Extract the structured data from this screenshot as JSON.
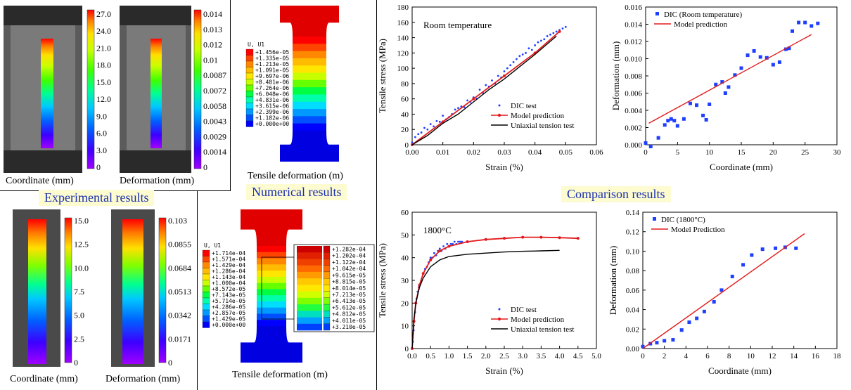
{
  "sections": {
    "experimental": "Experimental results",
    "numerical": "Numerical results",
    "comparison": "Comparison results"
  },
  "colormap": [
    "#a000ff",
    "#3c00ff",
    "#0060ff",
    "#00c8ff",
    "#00ff90",
    "#40ff00",
    "#c8ff00",
    "#ffe000",
    "#ff8000",
    "#ff0000"
  ],
  "exp_top": {
    "coord_ticks": [
      "27.0",
      "24.0",
      "21.0",
      "18.0",
      "15.0",
      "12.0",
      "9.0",
      "6.0",
      "3.0",
      "0"
    ],
    "def_ticks": [
      "0.014",
      "0.013",
      "0.012",
      "0.01",
      "0.0087",
      "0.0072",
      "0.0058",
      "0.0043",
      "0.0029",
      "0.0014",
      "0"
    ],
    "coord_caption": "Coordinate (mm)",
    "def_caption": "Deformation  (mm)"
  },
  "exp_bottom": {
    "coord_ticks": [
      "15.0",
      "12.5",
      "10.0",
      "7.5",
      "5.0",
      "2.5",
      "0"
    ],
    "def_ticks": [
      "0.103",
      "0.0855",
      "0.0684",
      "0.0513",
      "0.0342",
      "0.0171",
      "0"
    ],
    "coord_caption": "Coordinate (mm)",
    "def_caption": "Deformation (mm)"
  },
  "fea_top": {
    "title": "U, U1",
    "legend": [
      "+1.456e-05",
      "+1.335e-05",
      "+1.213e-05",
      "+1.091e-05",
      "+9.697e-06",
      "+8.481e-06",
      "+7.264e-06",
      "+6.048e-06",
      "+4.831e-06",
      "+3.615e-06",
      "+2.399e-06",
      "+1.182e-06",
      "+0.000e+00"
    ],
    "caption": "Tensile deformation (m)"
  },
  "fea_bottom": {
    "title": "U, U1",
    "legend": [
      "+1.714e-04",
      "+1.571e-04",
      "+1.429e-04",
      "+1.286e-04",
      "+1.143e-04",
      "+1.000e-04",
      "+8.572e-05",
      "+7.143e-05",
      "+5.714e-05",
      "+4.286e-05",
      "+2.857e-05",
      "+1.429e-05",
      "+0.000e+00"
    ],
    "zoom_legend": [
      "+1.282e-04",
      "+1.202e-04",
      "+1.122e-04",
      "+1.042e-04",
      "+9.615e-05",
      "+8.815e-05",
      "+8.014e-05",
      "+7.213e-05",
      "+6.413e-05",
      "+5.612e-05",
      "+4.812e-05",
      "+4.011e-05",
      "+3.210e-05"
    ],
    "caption": "Tensile deformation (m)"
  },
  "chart_data": [
    {
      "type": "scatter",
      "annotation": "Room temperature",
      "xlabel": "Strain (%)",
      "ylabel": "Tensile stress (MPa)",
      "xlim": [
        0,
        0.06
      ],
      "ylim": [
        0,
        180
      ],
      "xticks": [
        "0.00",
        "0.01",
        "0.02",
        "0.03",
        "0.04",
        "0.05",
        "0.06"
      ],
      "yticks": [
        "0",
        "20",
        "40",
        "60",
        "80",
        "100",
        "120",
        "140",
        "160",
        "180"
      ],
      "legend": "bottom-right",
      "series": [
        {
          "name": "DIC test",
          "style": "dots",
          "color": "#1f3fff",
          "x": [
            0.0,
            0.001,
            0.002,
            0.003,
            0.004,
            0.005,
            0.006,
            0.007,
            0.008,
            0.009,
            0.01,
            0.011,
            0.012,
            0.013,
            0.014,
            0.015,
            0.016,
            0.017,
            0.018,
            0.019,
            0.02,
            0.021,
            0.022,
            0.023,
            0.024,
            0.025,
            0.026,
            0.027,
            0.028,
            0.029,
            0.03,
            0.031,
            0.032,
            0.033,
            0.034,
            0.035,
            0.036,
            0.037,
            0.038,
            0.039,
            0.04,
            0.041,
            0.042,
            0.043,
            0.044,
            0.045,
            0.046,
            0.047,
            0.048,
            0.049,
            0.05
          ],
          "y": [
            3,
            10,
            14,
            16,
            22,
            20,
            27,
            24,
            31,
            30,
            38,
            33,
            36,
            40,
            46,
            48,
            50,
            49,
            58,
            56,
            62,
            60,
            72,
            68,
            78,
            76,
            84,
            80,
            90,
            88,
            96,
            100,
            104,
            108,
            112,
            116,
            118,
            120,
            126,
            124,
            130,
            134,
            136,
            138,
            142,
            144,
            146,
            148,
            150,
            152,
            154
          ]
        },
        {
          "name": "Model prediction",
          "style": "line-marker",
          "color": "#e31a1c",
          "x": [
            0,
            0.01,
            0.02,
            0.03,
            0.04,
            0.048
          ],
          "y": [
            0,
            30,
            60,
            90,
            120,
            148
          ]
        },
        {
          "name": "Uniaxial tension test",
          "style": "line",
          "color": "#000000",
          "x": [
            0,
            0.005,
            0.01,
            0.015,
            0.02,
            0.025,
            0.03,
            0.035,
            0.04,
            0.047
          ],
          "y": [
            0,
            12,
            28,
            40,
            56,
            72,
            86,
            102,
            118,
            142
          ]
        }
      ]
    },
    {
      "type": "scatter",
      "xlabel": "Coordinate (mm)",
      "ylabel": "Deformation (mm)",
      "xlim": [
        0,
        30
      ],
      "ylim": [
        0,
        0.016
      ],
      "xticks": [
        "0",
        "5",
        "10",
        "15",
        "20",
        "25",
        "30"
      ],
      "yticks": [
        "0.000",
        "0.002",
        "0.004",
        "0.006",
        "0.008",
        "0.010",
        "0.012",
        "0.014",
        "0.016"
      ],
      "legend": "top-left",
      "series": [
        {
          "name": "DIC (Room temperature)",
          "style": "squares",
          "color": "#1f3fff",
          "x": [
            0,
            0.8,
            2,
            3,
            3.5,
            4,
            4.5,
            5,
            6,
            7,
            8,
            9,
            9.5,
            10,
            11,
            12,
            12.5,
            13,
            14,
            15,
            16,
            17,
            18,
            19,
            20,
            21,
            22,
            22.5,
            23,
            24,
            25,
            26,
            27
          ],
          "y": [
            0.0002,
            -0.0002,
            0.0008,
            0.0023,
            0.0028,
            0.003,
            0.0028,
            0.0022,
            0.003,
            0.0048,
            0.0046,
            0.0034,
            0.0029,
            0.0047,
            0.007,
            0.0073,
            0.006,
            0.0067,
            0.0081,
            0.0089,
            0.0104,
            0.0109,
            0.0102,
            0.0101,
            0.0093,
            0.0096,
            0.0111,
            0.0112,
            0.0132,
            0.0142,
            0.0142,
            0.0138,
            0.0141
          ]
        },
        {
          "name": "Model prediction",
          "style": "line",
          "color": "#e31a1c",
          "x": [
            0.5,
            26
          ],
          "y": [
            0.0025,
            0.0128
          ]
        }
      ]
    },
    {
      "type": "scatter",
      "annotation": "1800°C",
      "xlabel": "Strain (%)",
      "ylabel": "Tensile stress (MPa)",
      "xlim": [
        0,
        5.0
      ],
      "ylim": [
        0,
        60
      ],
      "xticks": [
        "0.0",
        "0.5",
        "1.0",
        "1.5",
        "2.0",
        "2.5",
        "3.0",
        "3.5",
        "4.0",
        "4.5",
        "5.0"
      ],
      "yticks": [
        "0",
        "10",
        "20",
        "30",
        "40",
        "50",
        "60"
      ],
      "legend": "bottom-right",
      "series": [
        {
          "name": "DIC test",
          "style": "dots",
          "color": "#1f3fff",
          "x": [
            0.02,
            0.04,
            0.06,
            0.08,
            0.1,
            0.12,
            0.15,
            0.18,
            0.2,
            0.25,
            0.3,
            0.35,
            0.4,
            0.45,
            0.5,
            0.55,
            0.6,
            0.65,
            0.7,
            0.75,
            0.8,
            0.85,
            0.9,
            0.95,
            1.0,
            1.05,
            1.1,
            1.15,
            1.2,
            1.25,
            1.3,
            1.35
          ],
          "y": [
            3,
            8,
            12,
            16,
            20,
            22,
            25,
            27,
            28,
            30,
            33,
            35,
            36,
            38,
            40,
            40,
            42,
            41,
            43,
            44,
            43,
            45,
            44,
            46,
            45,
            46,
            46,
            47,
            46,
            47,
            47,
            47
          ]
        },
        {
          "name": "Model prediction",
          "style": "line-marker",
          "color": "#e31a1c",
          "x": [
            0,
            0.05,
            0.1,
            0.2,
            0.3,
            0.5,
            0.75,
            1.0,
            1.5,
            2.0,
            2.5,
            3.0,
            3.5,
            4.0,
            4.5
          ],
          "y": [
            0,
            12,
            20,
            28,
            33,
            39,
            43,
            45,
            47,
            48,
            48.5,
            49,
            49,
            48.8,
            48.5
          ]
        },
        {
          "name": "Uniaxial tension test",
          "style": "line",
          "color": "#000000",
          "x": [
            0,
            0.05,
            0.1,
            0.2,
            0.3,
            0.5,
            0.75,
            1.0,
            1.5,
            2.0,
            2.5,
            3.0,
            3.5,
            4.0
          ],
          "y": [
            0,
            13,
            20,
            27,
            31,
            36,
            39,
            40.5,
            41.5,
            42,
            42.5,
            42.8,
            43,
            43.2
          ]
        }
      ]
    },
    {
      "type": "scatter",
      "xlabel": "Coordinate (mm)",
      "ylabel": "Deformation (mm)",
      "xlim": [
        0,
        18
      ],
      "ylim": [
        0,
        0.14
      ],
      "xticks": [
        "0",
        "2",
        "4",
        "6",
        "8",
        "10",
        "12",
        "14",
        "16",
        "18"
      ],
      "yticks": [
        "0.00",
        "0.02",
        "0.04",
        "0.06",
        "0.08",
        "0.10",
        "0.12",
        "0.14"
      ],
      "legend": "top-left",
      "series": [
        {
          "name": "DIC (1800°C)",
          "style": "squares",
          "color": "#1f3fff",
          "x": [
            0,
            0.7,
            1.3,
            2,
            2.8,
            3.6,
            4.3,
            5,
            5.7,
            6.6,
            7.3,
            8.3,
            9.3,
            10.1,
            11.1,
            12.3,
            13.2,
            14.2
          ],
          "y": [
            0.002,
            0.005,
            0.006,
            0.008,
            0.009,
            0.019,
            0.027,
            0.031,
            0.038,
            0.048,
            0.06,
            0.074,
            0.086,
            0.096,
            0.102,
            0.103,
            0.104,
            0.103
          ]
        },
        {
          "name": "Model Prediction",
          "style": "line",
          "color": "#e31a1c",
          "x": [
            0,
            15
          ],
          "y": [
            0,
            0.118
          ]
        }
      ]
    }
  ]
}
